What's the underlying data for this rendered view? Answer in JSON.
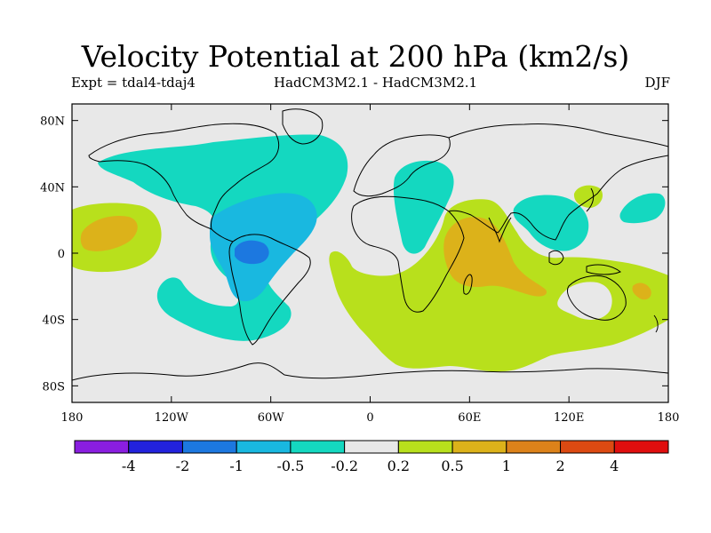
{
  "title": "Velocity Potential at 200 hPa (km2/s)",
  "subtitle_left": "Expt = tdal4-tdaj4",
  "subtitle_center": "HadCM3M2.1 - HadCM3M2.1",
  "subtitle_right": "DJF",
  "axes": {
    "lat_ticks": [
      {
        "label": "80N",
        "value": 80
      },
      {
        "label": "40N",
        "value": 40
      },
      {
        "label": "0",
        "value": 0
      },
      {
        "label": "40S",
        "value": -40
      },
      {
        "label": "80S",
        "value": -80
      }
    ],
    "lon_ticks": [
      {
        "label": "180",
        "value": -180
      },
      {
        "label": "120W",
        "value": -120
      },
      {
        "label": "60W",
        "value": -60
      },
      {
        "label": "0",
        "value": 0
      },
      {
        "label": "60E",
        "value": 60
      },
      {
        "label": "120E",
        "value": 120
      },
      {
        "label": "180",
        "value": 180
      }
    ]
  },
  "colorbar": {
    "colors": [
      "#8a1ee0",
      "#2222dd",
      "#1c78e0",
      "#19b8e0",
      "#14d8c0",
      "#e8e8e8",
      "#b8e01c",
      "#dcb21a",
      "#dc821a",
      "#dc4a12",
      "#e00e0e"
    ],
    "labels": [
      "-4",
      "-2",
      "-1",
      "-0.5",
      "-0.2",
      "0.2",
      "0.5",
      "1",
      "2",
      "4"
    ]
  },
  "colors": {
    "background": "#e8e8e8",
    "neg_weak": "#14d8c0",
    "neg_mid": "#19b8e0",
    "neg_strong": "#1c78e0",
    "pos_weak": "#b8e01c",
    "pos_mid": "#dcb21a",
    "pos_strong": "#dc821a"
  }
}
